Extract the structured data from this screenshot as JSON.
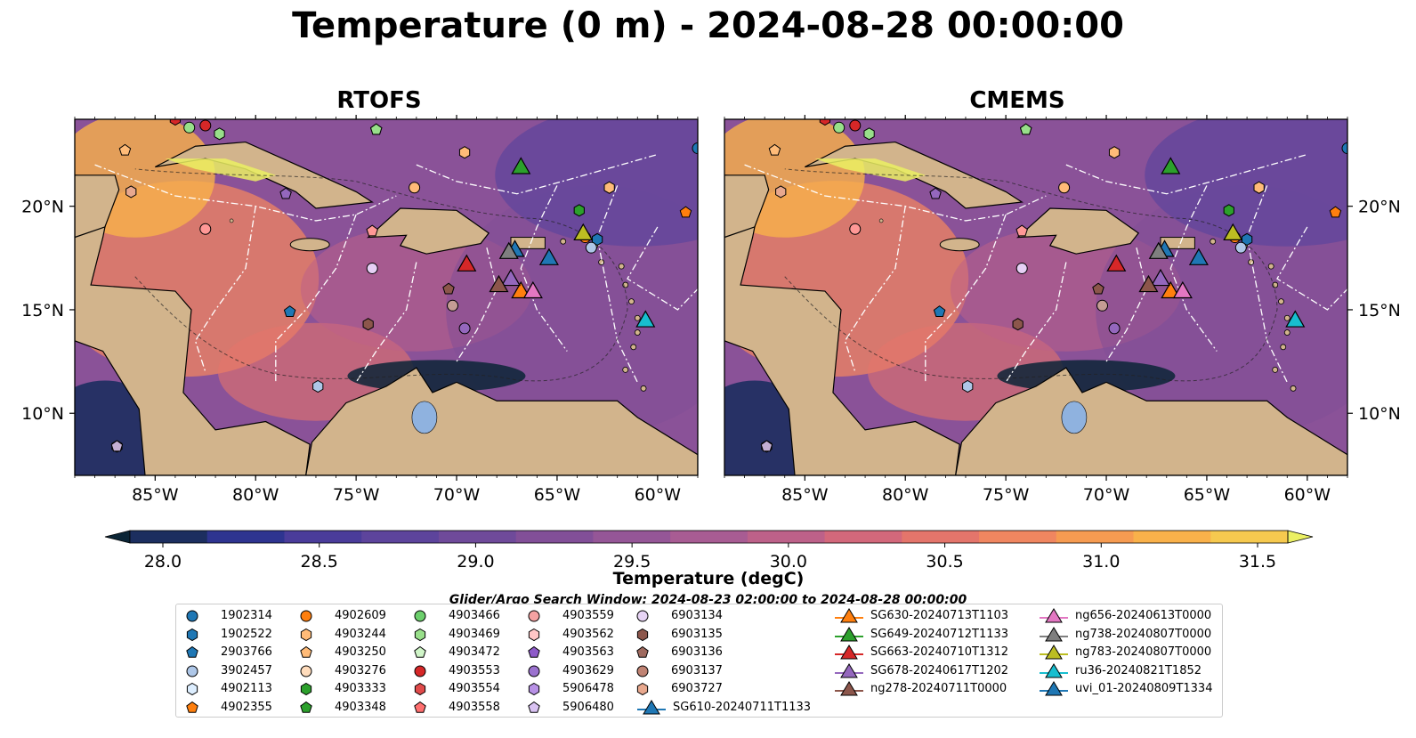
{
  "title": "Temperature (0 m) - 2024-08-28 00:00:00",
  "panels": [
    {
      "title": "RTOFS"
    },
    {
      "title": "CMEMS"
    }
  ],
  "search_window": "Glider/Argo Search Window: 2024-08-23 02:00:00 to 2024-08-28 00:00:00",
  "chart_data": {
    "type": "heatmap",
    "map_extent": {
      "lon": [
        -89,
        -58
      ],
      "lat": [
        7,
        24.2
      ]
    },
    "lon_ticks": [
      {
        "value": -85,
        "label": "85°W"
      },
      {
        "value": -80,
        "label": "80°W"
      },
      {
        "value": -75,
        "label": "75°W"
      },
      {
        "value": -70,
        "label": "70°W"
      },
      {
        "value": -65,
        "label": "65°W"
      },
      {
        "value": -60,
        "label": "60°W"
      }
    ],
    "lat_ticks": [
      {
        "value": 20,
        "label": "20°N"
      },
      {
        "value": 15,
        "label": "15°N"
      },
      {
        "value": 10,
        "label": "10°N"
      }
    ],
    "colorbar": {
      "label": "Temperature (degC)",
      "range": [
        28.0,
        31.5
      ],
      "ticks": [
        "28.0",
        "28.5",
        "29.0",
        "29.5",
        "30.0",
        "30.5",
        "31.0",
        "31.5"
      ],
      "extend": "both",
      "colors": [
        "#0b2536",
        "#1c2e5f",
        "#2e3490",
        "#4a3c9a",
        "#5d449c",
        "#6f4a9a",
        "#824f98",
        "#955697",
        "#a85c93",
        "#bd6189",
        "#d3687b",
        "#e4756b",
        "#f08660",
        "#f69b51",
        "#f9b14a",
        "#f6c94f",
        "#ebf063"
      ]
    },
    "glider_tracks": [
      {
        "name": "SG610-20240711T1133",
        "color": "#1f77b4",
        "lon": -67.1,
        "lat": 17.9
      },
      {
        "name": "SG630-20240713T1103",
        "color": "#ff7f0e",
        "lon": -66.8,
        "lat": 15.9
      },
      {
        "name": "SG649-20240712T1133",
        "color": "#2ca02c",
        "lon": -66.8,
        "lat": 21.9
      },
      {
        "name": "SG663-20240710T1312",
        "color": "#d62728",
        "lon": -69.5,
        "lat": 17.2
      },
      {
        "name": "SG678-20240617T1202",
        "color": "#9467bd",
        "lon": -67.3,
        "lat": 16.5
      },
      {
        "name": "ng278-20240711T0000",
        "color": "#8c564b",
        "lon": -67.9,
        "lat": 16.2
      },
      {
        "name": "ng656-20240613T0000",
        "color": "#e377c2",
        "lon": -66.2,
        "lat": 15.9
      },
      {
        "name": "ng738-20240807T0000",
        "color": "#7f7f7f",
        "lon": -67.4,
        "lat": 17.8
      },
      {
        "name": "ng783-20240807T0000",
        "color": "#bcbd22",
        "lon": -63.7,
        "lat": 18.7
      },
      {
        "name": "ru36-20240821T1852",
        "color": "#17becf",
        "lon": -60.6,
        "lat": 14.5
      },
      {
        "name": "uvi_01-20240809T1334",
        "color": "#1f77b4",
        "lon": -65.4,
        "lat": 17.5
      }
    ],
    "argo_floats": [
      {
        "name": "1902314",
        "color": "#1f77b4",
        "marker": "circle",
        "lon": -58.0,
        "lat": 22.8
      },
      {
        "name": "1902522",
        "color": "#1f77b4",
        "marker": "hexagon",
        "lon": -63.0,
        "lat": 18.4
      },
      {
        "name": "2903766",
        "color": "#1f77b4",
        "marker": "pentagon",
        "lon": -78.3,
        "lat": 14.9
      },
      {
        "name": "3902457",
        "color": "#aec7e8",
        "marker": "circle",
        "lon": -63.3,
        "lat": 18.0
      },
      {
        "name": "4902113",
        "color": "#aec7e8",
        "marker": "hexagon",
        "lon": -76.9,
        "lat": 11.3
      },
      {
        "name": "4902355",
        "color": "#ff7f0e",
        "marker": "pentagon",
        "lon": -58.6,
        "lat": 19.7
      },
      {
        "name": "4902609",
        "color": "#ff7f0e",
        "marker": "circle",
        "lon": -63.6,
        "lat": 18.5
      },
      {
        "name": "4903244",
        "color": "#ffbb78",
        "marker": "hexagon",
        "lon": -62.4,
        "lat": 20.9
      },
      {
        "name": "4903250",
        "color": "#ffbb78",
        "marker": "pentagon",
        "lon": -86.5,
        "lat": 22.7
      },
      {
        "name": "4903276",
        "color": "#ffbb78",
        "marker": "circle",
        "lon": -72.1,
        "lat": 20.9
      },
      {
        "name": "4903333",
        "color": "#2ca02c",
        "marker": "hexagon",
        "lon": -63.9,
        "lat": 19.8
      },
      {
        "name": "4903348",
        "color": "#2ca02c",
        "marker": "pentagon",
        "lon": -74.0,
        "lat": 23.7
      },
      {
        "name": "4903466",
        "color": "#98df8a",
        "marker": "circle",
        "lon": -83.3,
        "lat": 23.8
      },
      {
        "name": "4903469",
        "color": "#98df8a",
        "marker": "hexagon",
        "lon": -81.8,
        "lat": 23.5
      },
      {
        "name": "4903472",
        "color": "#98df8a",
        "marker": "pentagon",
        "lon": -74.0,
        "lat": 23.7
      },
      {
        "name": "4903553",
        "color": "#d62728",
        "marker": "circle",
        "lon": -82.5,
        "lat": 23.9
      },
      {
        "name": "4903554",
        "color": "#d62728",
        "marker": "hexagon",
        "lon": -84.0,
        "lat": 24.2
      },
      {
        "name": "4903558",
        "color": "#ff9896",
        "marker": "pentagon",
        "lon": -74.2,
        "lat": 18.8
      },
      {
        "name": "4903559",
        "color": "#ff9896",
        "marker": "circle",
        "lon": -82.5,
        "lat": 18.9
      },
      {
        "name": "4903562",
        "color": "#ffbb78",
        "marker": "hexagon",
        "lon": -69.6,
        "lat": 22.6
      },
      {
        "name": "4903563",
        "color": "#9467bd",
        "marker": "pentagon",
        "lon": -78.5,
        "lat": 20.6
      },
      {
        "name": "4903629",
        "color": "#9467bd",
        "marker": "circle",
        "lon": -69.6,
        "lat": 14.1
      },
      {
        "name": "5906478",
        "color": "#c5b0d5",
        "marker": "hexagon",
        "lon": -86.9,
        "lat": 8.4
      },
      {
        "name": "5906480",
        "color": "#c5b0d5",
        "marker": "pentagon",
        "lon": -86.9,
        "lat": 8.4
      },
      {
        "name": "6903134",
        "color": "#e6d0f5",
        "marker": "circle",
        "lon": -74.2,
        "lat": 17.0
      },
      {
        "name": "6903135",
        "color": "#8c564b",
        "marker": "hexagon",
        "lon": -74.4,
        "lat": 14.3
      },
      {
        "name": "6903136",
        "color": "#8c564b",
        "marker": "pentagon",
        "lon": -70.4,
        "lat": 16.0
      },
      {
        "name": "6903137",
        "color": "#c49c94",
        "marker": "circle",
        "lon": -70.2,
        "lat": 15.2
      },
      {
        "name": "6903727",
        "color": "#e8a88e",
        "marker": "hexagon",
        "lon": -86.2,
        "lat": 20.7
      }
    ]
  },
  "legend": {
    "columns": [
      [
        {
          "label": "1902314",
          "marker": "circle",
          "color": "#1f77b4"
        },
        {
          "label": "1902522",
          "marker": "hexagon",
          "color": "#1f77b4"
        },
        {
          "label": "2903766",
          "marker": "pentagon",
          "color": "#1f77b4"
        },
        {
          "label": "3902457",
          "marker": "circle",
          "color": "#aec7e8"
        },
        {
          "label": "4902113",
          "marker": "hexagon",
          "color": "#ddeeff"
        },
        {
          "label": "4902355",
          "marker": "pentagon",
          "color": "#ff7f0e"
        }
      ],
      [
        {
          "label": "4902609",
          "marker": "circle",
          "color": "#ff7f0e"
        },
        {
          "label": "4903244",
          "marker": "hexagon",
          "color": "#ffbb78"
        },
        {
          "label": "4903250",
          "marker": "pentagon",
          "color": "#ffbb78"
        },
        {
          "label": "4903276",
          "marker": "circle",
          "color": "#ffdcbc"
        },
        {
          "label": "4903333",
          "marker": "hexagon",
          "color": "#2ca02c"
        },
        {
          "label": "4903348",
          "marker": "pentagon",
          "color": "#2ca02c"
        }
      ],
      [
        {
          "label": "4903466",
          "marker": "circle",
          "color": "#6ccf6c"
        },
        {
          "label": "4903469",
          "marker": "hexagon",
          "color": "#98df8a"
        },
        {
          "label": "4903472",
          "marker": "pentagon",
          "color": "#d0f5c8"
        },
        {
          "label": "4903553",
          "marker": "circle",
          "color": "#d62728"
        },
        {
          "label": "4903554",
          "marker": "hexagon",
          "color": "#e04a4a"
        },
        {
          "label": "4903558",
          "marker": "pentagon",
          "color": "#ff6f6f"
        }
      ],
      [
        {
          "label": "4903559",
          "marker": "circle",
          "color": "#f4a2a2"
        },
        {
          "label": "4903562",
          "marker": "hexagon",
          "color": "#ffc6c6"
        },
        {
          "label": "4903563",
          "marker": "pentagon",
          "color": "#8e5bc9"
        },
        {
          "label": "4903629",
          "marker": "circle",
          "color": "#9b72cf"
        },
        {
          "label": "5906478",
          "marker": "hexagon",
          "color": "#b891e6"
        },
        {
          "label": "5906480",
          "marker": "pentagon",
          "color": "#d9c2f2"
        }
      ],
      [
        {
          "label": "6903134",
          "marker": "circle",
          "color": "#e7d4f5"
        },
        {
          "label": "6903135",
          "marker": "hexagon",
          "color": "#8c564b"
        },
        {
          "label": "6903136",
          "marker": "pentagon",
          "color": "#9f6a5f"
        },
        {
          "label": "6903137",
          "marker": "circle",
          "color": "#c08373"
        },
        {
          "label": "6903727",
          "marker": "hexagon",
          "color": "#e8a88e"
        },
        {
          "label": "SG610-20240711T1133",
          "marker": "triangle",
          "color": "#1f77b4"
        }
      ],
      [
        {
          "label": "SG630-20240713T1103",
          "marker": "triangle",
          "color": "#ff7f0e"
        },
        {
          "label": "SG649-20240712T1133",
          "marker": "triangle",
          "color": "#2ca02c"
        },
        {
          "label": "SG663-20240710T1312",
          "marker": "triangle",
          "color": "#d62728"
        },
        {
          "label": "SG678-20240617T1202",
          "marker": "triangle",
          "color": "#9467bd"
        },
        {
          "label": "ng278-20240711T0000",
          "marker": "triangle",
          "color": "#8c564b"
        }
      ],
      [
        {
          "label": "ng656-20240613T0000",
          "marker": "triangle",
          "color": "#e377c2"
        },
        {
          "label": "ng738-20240807T0000",
          "marker": "triangle",
          "color": "#7f7f7f"
        },
        {
          "label": "ng783-20240807T0000",
          "marker": "triangle",
          "color": "#bcbd22"
        },
        {
          "label": "ru36-20240821T1852",
          "marker": "triangle",
          "color": "#17becf"
        },
        {
          "label": "uvi_01-20240809T1334",
          "marker": "triangle",
          "color": "#1f77b4"
        }
      ]
    ]
  }
}
